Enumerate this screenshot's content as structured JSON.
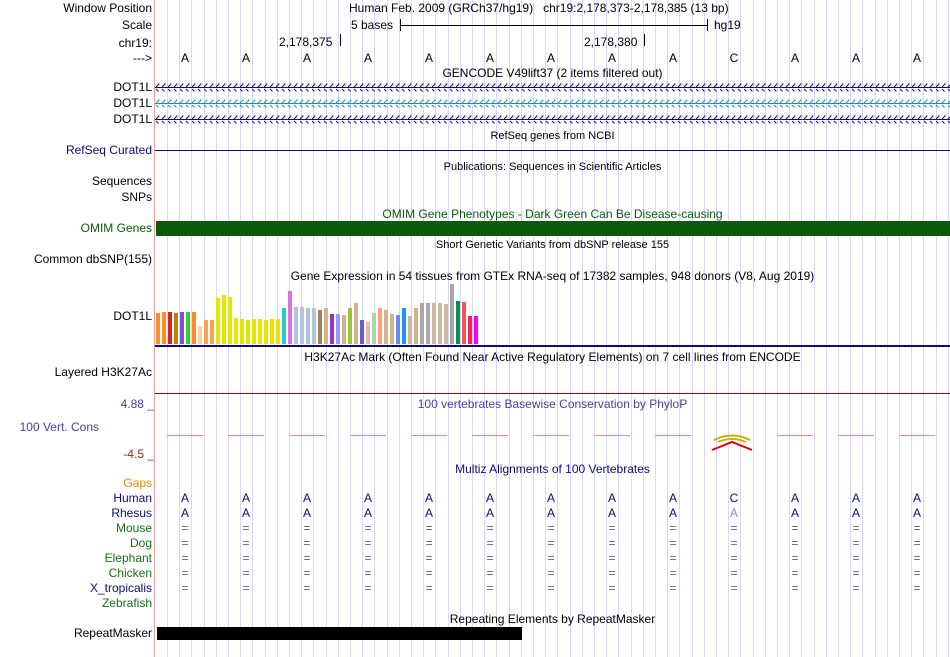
{
  "header": {
    "window_position_label": "Window Position",
    "window_position_value": "Human Feb. 2009 (GRCh37/hg19)   chr19:2,178,373-2,178,385 (13 bp)",
    "scale_label": "Scale",
    "scale_text": "5 bases",
    "scale_assembly": "hg19",
    "chrom_label": "chr19:",
    "tick_1": "2,178,375",
    "tick_2": "2,178,380",
    "strand_label": "--->"
  },
  "bases": [
    "A",
    "A",
    "A",
    "A",
    "A",
    "A",
    "A",
    "A",
    "A",
    "C",
    "A",
    "A",
    "A"
  ],
  "gencode": {
    "title": "GENCODE V49lift37 (2 items filtered out)",
    "rows": [
      "DOT1L",
      "DOT1L",
      "DOT1L"
    ],
    "colors": [
      "#0c0c78",
      "#1e8cb4",
      "#0c0c78"
    ]
  },
  "refseq": {
    "title": "RefSeq genes from NCBI",
    "label": "RefSeq Curated"
  },
  "publications": {
    "title": "Publications: Sequences in Scientific Articles",
    "label1": "Sequences",
    "label2": "SNPs"
  },
  "omim": {
    "title": "OMIM Gene Phenotypes - Dark Green Can Be Disease-causing",
    "label": "OMIM Genes",
    "color": "#0b5b0b"
  },
  "dbsnp": {
    "title": "Short Genetic Variants from dbSNP release 155",
    "label": "Common dbSNP(155)"
  },
  "gtex": {
    "title": "Gene Expression in 54 tissues from GTEx RNA-seq of 17382 samples, 948 donors (V8, Aug 2019)",
    "label": "DOT1L",
    "levels": [
      0.52,
      0.54,
      0.54,
      0.52,
      0.54,
      0.54,
      0.53,
      0.3,
      0.4,
      0.4,
      0.76,
      0.82,
      0.78,
      0.44,
      0.42,
      0.4,
      0.42,
      0.42,
      0.4,
      0.42,
      0.42,
      0.6,
      0.88,
      0.62,
      0.62,
      0.6,
      0.6,
      0.56,
      0.6,
      0.5,
      0.5,
      0.48,
      0.6,
      0.68,
      0.4,
      0.36,
      0.52,
      0.6,
      0.56,
      0.5,
      0.48,
      0.6,
      0.46,
      0.6,
      0.68,
      0.68,
      0.68,
      0.68,
      0.66,
      1.0,
      0.72,
      0.7,
      0.46,
      0.46
    ],
    "colors": [
      "#ff8c28",
      "#ff8c28",
      "#dd2020",
      "#c08000",
      "#7a4fdd",
      "#32cd32",
      "#ff8c28",
      "#ffd0a0",
      "#ffa050",
      "#ffa050",
      "#e6e600",
      "#e6e600",
      "#e6e600",
      "#e6e600",
      "#e6e600",
      "#e6e600",
      "#e6e600",
      "#e6e600",
      "#e6e600",
      "#e6e600",
      "#e6e600",
      "#22cccc",
      "#e070e0",
      "#b0c4de",
      "#b0c4de",
      "#b0c4de",
      "#b0c4de",
      "#9c8060",
      "#d2b48c",
      "#9932cc",
      "#9999ff",
      "#d2b48c",
      "#a0c040",
      "#d2b48c",
      "#6a5acd",
      "#eeb4b4",
      "#a8d8a8",
      "#ffa07a",
      "#d2b48c",
      "#d2b48c",
      "#6a8aee",
      "#1e90ff",
      "#cdb79e",
      "#d2b48c",
      "#a9a9a9",
      "#a9a9a9",
      "#cdb79e",
      "#cdb79e",
      "#cdb79e",
      "#a9a9a9",
      "#0a8c5a",
      "#ff5050",
      "#ff2050",
      "#ff00ff"
    ]
  },
  "h3k27ac": {
    "title": "H3K27Ac Mark (Often Found Near Active Regulatory Elements) on 7 cell lines from ENCODE",
    "label": "Layered H3K27Ac"
  },
  "phylop": {
    "title": "100 vertebrates Basewise Conservation by PhyloP",
    "label": "100 Vert. Cons",
    "ymax": "4.88 _",
    "ymin": "-4.5 _",
    "scores": [
      -0.3,
      -0.3,
      -0.3,
      -0.3,
      -0.3,
      -0.3,
      -0.3,
      -0.3,
      -0.3,
      0.3,
      -0.3,
      -0.3,
      -0.3
    ]
  },
  "multiz": {
    "title": "Multiz Alignments of 100 Vertebrates",
    "gaps_label": "Gaps",
    "species": [
      {
        "name": "Human",
        "color": "#0c0c78",
        "bases": [
          "A",
          "A",
          "A",
          "A",
          "A",
          "A",
          "A",
          "A",
          "A",
          "C",
          "A",
          "A",
          "A"
        ]
      },
      {
        "name": "Rhesus",
        "color": "#0c0c78",
        "bases": [
          "A",
          "A",
          "A",
          "A",
          "A",
          "A",
          "A",
          "A",
          "A",
          "A",
          "A",
          "A",
          "A"
        ]
      },
      {
        "name": "Mouse",
        "color": "#1a6e1a",
        "bases": [
          "=",
          "=",
          "=",
          "=",
          "=",
          "=",
          "=",
          "=",
          "=",
          "=",
          "=",
          "=",
          "="
        ]
      },
      {
        "name": "Dog",
        "color": "#1a6e1a",
        "bases": [
          "=",
          "=",
          "=",
          "=",
          "=",
          "=",
          "=",
          "=",
          "=",
          "=",
          "=",
          "=",
          "="
        ]
      },
      {
        "name": "Elephant",
        "color": "#1a6e1a",
        "bases": [
          "=",
          "=",
          "=",
          "=",
          "=",
          "=",
          "=",
          "=",
          "=",
          "=",
          "=",
          "=",
          "="
        ]
      },
      {
        "name": "Chicken",
        "color": "#1a6e1a",
        "bases": [
          "=",
          "=",
          "=",
          "=",
          "=",
          "=",
          "=",
          "=",
          "=",
          "=",
          "=",
          "=",
          "="
        ]
      },
      {
        "name": "X_tropicalis",
        "color": "#0c0c78",
        "bases": [
          "=",
          "=",
          "=",
          "=",
          "=",
          "=",
          "=",
          "=",
          "=",
          "=",
          "=",
          "=",
          "="
        ]
      },
      {
        "name": "Zebrafish",
        "color": "#1a6e1a",
        "bases": []
      }
    ]
  },
  "repeatmasker": {
    "title": "Repeating Elements by RepeatMasker",
    "label": "RepeatMasker"
  },
  "colors": {
    "accent_label": "#43439a",
    "gaps": "#e68a00",
    "omim_green": "#0b5b0b",
    "mismatch": "#8a8ac0"
  }
}
